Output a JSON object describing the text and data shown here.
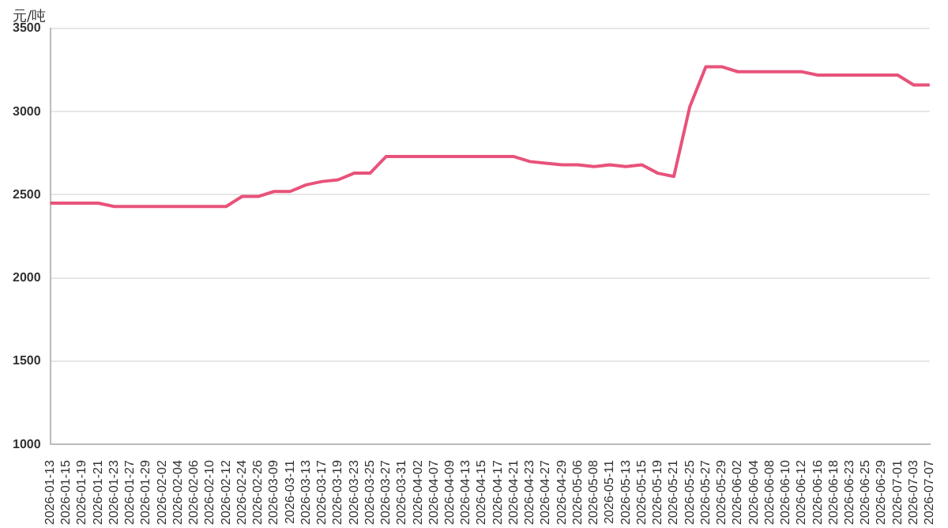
{
  "chart_data": {
    "type": "line",
    "ylabel": "元/吨",
    "categories": [
      "2026-01-13",
      "2026-01-15",
      "2026-01-19",
      "2026-01-21",
      "2026-01-23",
      "2026-01-27",
      "2026-01-29",
      "2026-02-02",
      "2026-02-04",
      "2026-02-06",
      "2026-02-10",
      "2026-02-12",
      "2026-02-24",
      "2026-02-26",
      "2026-03-09",
      "2026-03-11",
      "2026-03-13",
      "2026-03-17",
      "2026-03-19",
      "2026-03-23",
      "2026-03-25",
      "2026-03-27",
      "2026-03-31",
      "2026-04-02",
      "2026-04-07",
      "2026-04-09",
      "2026-04-13",
      "2026-04-15",
      "2026-04-17",
      "2026-04-21",
      "2026-04-23",
      "2026-04-27",
      "2026-04-29",
      "2026-05-06",
      "2026-05-08",
      "2026-05-11",
      "2026-05-13",
      "2026-05-15",
      "2026-05-19",
      "2026-05-21",
      "2026-05-25",
      "2026-05-27",
      "2026-05-29",
      "2026-06-02",
      "2026-06-04",
      "2026-06-08",
      "2026-06-10",
      "2026-06-12",
      "2026-06-16",
      "2026-06-18",
      "2026-06-23",
      "2026-06-25",
      "2026-06-29",
      "2026-07-01",
      "2026-07-03",
      "2026-07-07"
    ],
    "series": [
      {
        "color": "#e8527a",
        "values": [
          2450,
          2450,
          2450,
          2450,
          2430,
          2430,
          2430,
          2430,
          2430,
          2430,
          2430,
          2430,
          2490,
          2490,
          2520,
          2520,
          2560,
          2580,
          2590,
          2630,
          2630,
          2730,
          2730,
          2730,
          2730,
          2730,
          2730,
          2730,
          2730,
          2730,
          2700,
          2690,
          2680,
          2680,
          2670,
          2680,
          2670,
          2680,
          2630,
          2610,
          3030,
          3270,
          3270,
          3240,
          3240,
          3240,
          3240,
          3240,
          3220,
          3220,
          3220,
          3220,
          3220,
          3220,
          3160,
          3160
        ]
      }
    ],
    "ylim": [
      1000,
      3500
    ],
    "yticks": [
      1000,
      1500,
      2000,
      2500,
      3000,
      3500
    ],
    "grid": "y",
    "legend": false,
    "marker": "none",
    "line_style": "solid"
  }
}
